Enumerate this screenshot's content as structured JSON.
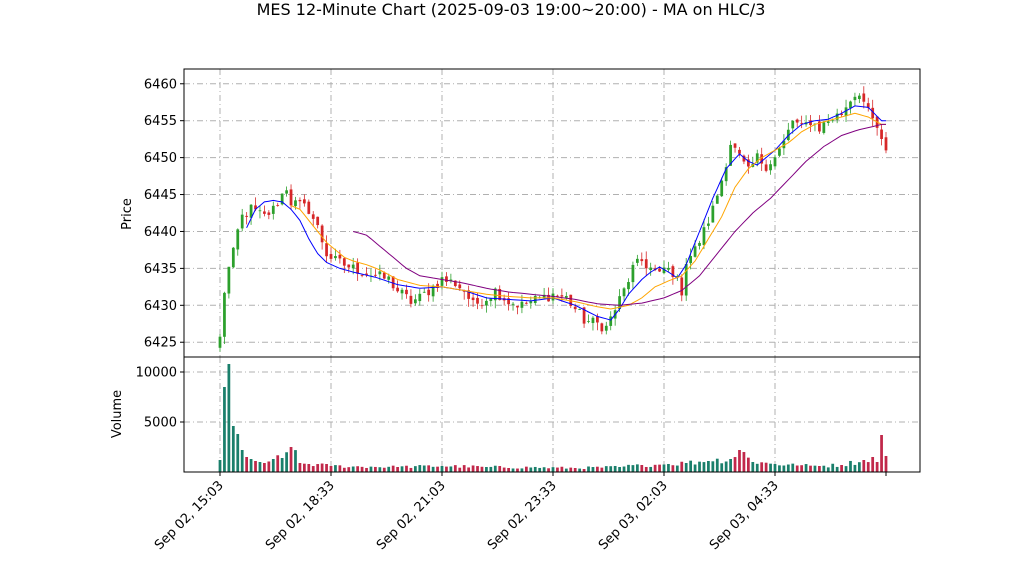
{
  "chart_data": {
    "type": "candlestick",
    "title": "MES 12-Minute Chart (2025-09-03 19:00~20:00) - MA on HLC/3",
    "price_panel": {
      "ylabel": "Price",
      "ylim": [
        6423,
        6462
      ],
      "y_ticks": [
        6425,
        6430,
        6435,
        6440,
        6445,
        6450,
        6455,
        6460
      ],
      "grid": true,
      "up_color": "#2ca02c",
      "down_color": "#d62728"
    },
    "volume_panel": {
      "ylabel": "Volume",
      "ylim": [
        0,
        11500
      ],
      "y_ticks": [
        5000,
        10000
      ],
      "grid": true,
      "up_color": "#1a7f6b",
      "down_color": "#c1284a"
    },
    "x_ticks": [
      "Sep 02, 15:03",
      "Sep 02, 18:33",
      "Sep 02, 21:03",
      "Sep 02, 23:33",
      "Sep 03, 02:03",
      "Sep 03, 04:33"
    ],
    "x_tick_bar_index": [
      0,
      25,
      50,
      75,
      100,
      125
    ],
    "bar_count": 151,
    "price_anchors": [
      [
        0,
        6425.5
      ],
      [
        1,
        6432
      ],
      [
        2,
        6435
      ],
      [
        3,
        6437
      ],
      [
        4,
        6440
      ],
      [
        5,
        6442
      ],
      [
        7,
        6443
      ],
      [
        10,
        6442
      ],
      [
        12,
        6443
      ],
      [
        14,
        6445
      ],
      [
        15,
        6446
      ],
      [
        16,
        6444
      ],
      [
        18,
        6443.5
      ],
      [
        20,
        6443
      ],
      [
        22,
        6440.5
      ],
      [
        24,
        6437
      ],
      [
        26,
        6436
      ],
      [
        28,
        6435.5
      ],
      [
        30,
        6435
      ],
      [
        35,
        6434
      ],
      [
        38,
        6433.5
      ],
      [
        40,
        6432
      ],
      [
        43,
        6430.5
      ],
      [
        45,
        6431
      ],
      [
        48,
        6432.5
      ],
      [
        50,
        6433.5
      ],
      [
        53,
        6433
      ],
      [
        55,
        6432
      ],
      [
        57,
        6430
      ],
      [
        60,
        6431
      ],
      [
        62,
        6432
      ],
      [
        65,
        6430.5
      ],
      [
        68,
        6430
      ],
      [
        70,
        6430.5
      ],
      [
        75,
        6431.5
      ],
      [
        78,
        6431
      ],
      [
        80,
        6429.5
      ],
      [
        82,
        6428
      ],
      [
        85,
        6427.5
      ],
      [
        87,
        6427
      ],
      [
        89,
        6429.5
      ],
      [
        91,
        6432
      ],
      [
        93,
        6435
      ],
      [
        95,
        6436
      ],
      [
        97,
        6435
      ],
      [
        99,
        6434
      ],
      [
        100,
        6435
      ],
      [
        102,
        6434.5
      ],
      [
        104,
        6432
      ],
      [
        105,
        6436
      ],
      [
        107,
        6437.5
      ],
      [
        109,
        6440
      ],
      [
        111,
        6443
      ],
      [
        113,
        6447
      ],
      [
        115,
        6452
      ],
      [
        117,
        6450
      ],
      [
        119,
        6448
      ],
      [
        121,
        6450
      ],
      [
        123,
        6449
      ],
      [
        125,
        6450
      ],
      [
        127,
        6452
      ],
      [
        129,
        6455
      ],
      [
        131,
        6454
      ],
      [
        133,
        6455
      ],
      [
        135,
        6454
      ],
      [
        137,
        6455
      ],
      [
        140,
        6456
      ],
      [
        142,
        6458
      ],
      [
        144,
        6459
      ],
      [
        146,
        6456
      ],
      [
        148,
        6454
      ],
      [
        149,
        6452
      ],
      [
        150,
        6450.5
      ]
    ],
    "volume_anchors": [
      [
        0,
        1200
      ],
      [
        1,
        8500
      ],
      [
        2,
        10800
      ],
      [
        3,
        4600
      ],
      [
        4,
        3800
      ],
      [
        5,
        2200
      ],
      [
        6,
        1500
      ],
      [
        7,
        1300
      ],
      [
        8,
        1100
      ],
      [
        9,
        1000
      ],
      [
        10,
        900
      ],
      [
        12,
        1300
      ],
      [
        14,
        1400
      ],
      [
        16,
        2500
      ],
      [
        18,
        900
      ],
      [
        20,
        800
      ],
      [
        25,
        600
      ],
      [
        30,
        550
      ],
      [
        40,
        500
      ],
      [
        50,
        600
      ],
      [
        60,
        500
      ],
      [
        70,
        450
      ],
      [
        80,
        400
      ],
      [
        90,
        500
      ],
      [
        95,
        700
      ],
      [
        100,
        750
      ],
      [
        105,
        900
      ],
      [
        110,
        1100
      ],
      [
        115,
        1300
      ],
      [
        117,
        2200
      ],
      [
        120,
        1000
      ],
      [
        125,
        800
      ],
      [
        130,
        650
      ],
      [
        135,
        600
      ],
      [
        140,
        700
      ],
      [
        145,
        1200
      ],
      [
        147,
        1500
      ],
      [
        148,
        1000
      ],
      [
        149,
        3700
      ],
      [
        150,
        1600
      ]
    ],
    "moving_averages": [
      {
        "color": "#0000ff",
        "start_index": 6,
        "anchors": [
          [
            6,
            6440.5
          ],
          [
            8,
            6443
          ],
          [
            10,
            6444
          ],
          [
            12,
            6444.2
          ],
          [
            14,
            6444
          ],
          [
            16,
            6443
          ],
          [
            18,
            6441.5
          ],
          [
            20,
            6439
          ],
          [
            22,
            6437
          ],
          [
            24,
            6435.8
          ],
          [
            27,
            6435
          ],
          [
            30,
            6434.5
          ],
          [
            35,
            6433.8
          ],
          [
            40,
            6432.8
          ],
          [
            45,
            6432.3
          ],
          [
            50,
            6432.5
          ],
          [
            55,
            6432
          ],
          [
            60,
            6431
          ],
          [
            65,
            6430.8
          ],
          [
            70,
            6430.6
          ],
          [
            75,
            6431
          ],
          [
            80,
            6430
          ],
          [
            85,
            6428.5
          ],
          [
            88,
            6428
          ],
          [
            90,
            6429.5
          ],
          [
            92,
            6431.5
          ],
          [
            95,
            6433.5
          ],
          [
            97,
            6434.5
          ],
          [
            99,
            6435.2
          ],
          [
            101,
            6434.5
          ],
          [
            103,
            6433.7
          ],
          [
            105,
            6435.5
          ],
          [
            108,
            6440
          ],
          [
            111,
            6444.5
          ],
          [
            114,
            6448.5
          ],
          [
            117,
            6450.5
          ],
          [
            119,
            6449.5
          ],
          [
            121,
            6449
          ],
          [
            123,
            6450
          ],
          [
            125,
            6451
          ],
          [
            128,
            6453
          ],
          [
            131,
            6454.5
          ],
          [
            134,
            6455
          ],
          [
            137,
            6455.2
          ],
          [
            140,
            6456
          ],
          [
            143,
            6457
          ],
          [
            146,
            6456.8
          ],
          [
            149,
            6455
          ]
        ]
      },
      {
        "color": "#ffa500",
        "start_index": 16,
        "anchors": [
          [
            16,
            6443.5
          ],
          [
            18,
            6443
          ],
          [
            20,
            6441.5
          ],
          [
            22,
            6440
          ],
          [
            24,
            6438.5
          ],
          [
            26,
            6437.5
          ],
          [
            28,
            6436.5
          ],
          [
            30,
            6436
          ],
          [
            33,
            6435.5
          ],
          [
            36,
            6434.8
          ],
          [
            40,
            6433.5
          ],
          [
            45,
            6432.7
          ],
          [
            50,
            6432.5
          ],
          [
            55,
            6432
          ],
          [
            60,
            6431.5
          ],
          [
            65,
            6431.2
          ],
          [
            70,
            6431
          ],
          [
            75,
            6431
          ],
          [
            80,
            6430.5
          ],
          [
            85,
            6429.8
          ],
          [
            88,
            6429.5
          ],
          [
            92,
            6430
          ],
          [
            95,
            6431
          ],
          [
            98,
            6432.5
          ],
          [
            101,
            6433.3
          ],
          [
            104,
            6434
          ],
          [
            107,
            6436
          ],
          [
            110,
            6439
          ],
          [
            113,
            6442
          ],
          [
            116,
            6446
          ],
          [
            119,
            6448.5
          ],
          [
            122,
            6450
          ],
          [
            125,
            6451
          ],
          [
            128,
            6452
          ],
          [
            131,
            6453.5
          ],
          [
            134,
            6454.5
          ],
          [
            137,
            6455
          ],
          [
            140,
            6455.5
          ],
          [
            143,
            6456
          ],
          [
            146,
            6455.5
          ],
          [
            149,
            6454.5
          ]
        ]
      },
      {
        "color": "#800080",
        "start_index": 30,
        "anchors": [
          [
            30,
            6440
          ],
          [
            33,
            6439.5
          ],
          [
            36,
            6438
          ],
          [
            39,
            6436.5
          ],
          [
            42,
            6435
          ],
          [
            45,
            6434
          ],
          [
            50,
            6433.5
          ],
          [
            55,
            6433
          ],
          [
            60,
            6432.3
          ],
          [
            65,
            6431.8
          ],
          [
            70,
            6431.5
          ],
          [
            75,
            6431.2
          ],
          [
            80,
            6430.8
          ],
          [
            85,
            6430.2
          ],
          [
            90,
            6430
          ],
          [
            95,
            6430.3
          ],
          [
            100,
            6431
          ],
          [
            104,
            6432
          ],
          [
            108,
            6434
          ],
          [
            112,
            6437
          ],
          [
            116,
            6440
          ],
          [
            120,
            6442.5
          ],
          [
            124,
            6444.5
          ],
          [
            128,
            6447
          ],
          [
            132,
            6449.5
          ],
          [
            136,
            6451.5
          ],
          [
            140,
            6453
          ],
          [
            144,
            6453.8
          ],
          [
            147,
            6454.2
          ],
          [
            149,
            6454.5
          ]
        ]
      }
    ]
  }
}
